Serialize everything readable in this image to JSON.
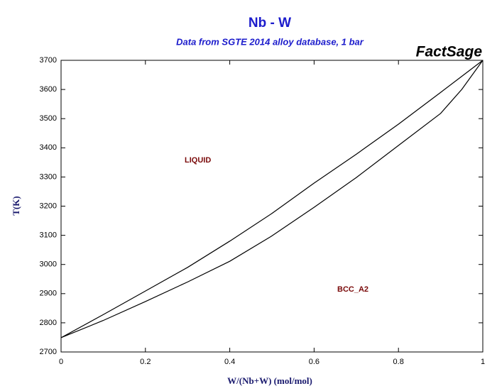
{
  "chart_data": {
    "type": "line",
    "title": "Nb - W",
    "subtitle": "Data from SGTE 2014 alloy database, 1 bar",
    "watermark": "FactSage",
    "x_label": "W/(Nb+W) (mol/mol)",
    "y_label": "T(K)",
    "annotations": [
      "LIQUID",
      "BCC_A2"
    ],
    "x": [
      0,
      0.1,
      0.2,
      0.3,
      0.4,
      0.5,
      0.6,
      0.7,
      0.8,
      0.9,
      0.95,
      1
    ],
    "series": [
      {
        "color": "#000000",
        "values": [
          2749,
          2828,
          2909,
          2990,
          3080,
          3175,
          3279,
          3378,
          3481,
          3590,
          3645,
          3700
        ]
      },
      {
        "color": "#000000",
        "values": [
          2749,
          2808,
          2873,
          2940,
          3011,
          3098,
          3196,
          3298,
          3408,
          3518,
          3600,
          3700
        ]
      }
    ],
    "xlim": [
      0,
      1
    ],
    "ylim": [
      2700,
      3700
    ],
    "xticks": [
      0,
      0.2,
      0.4,
      0.6,
      0.8,
      1
    ],
    "yticks": [
      2700,
      2800,
      2900,
      3000,
      3100,
      3200,
      3300,
      3400,
      3500,
      3600,
      3700
    ]
  }
}
